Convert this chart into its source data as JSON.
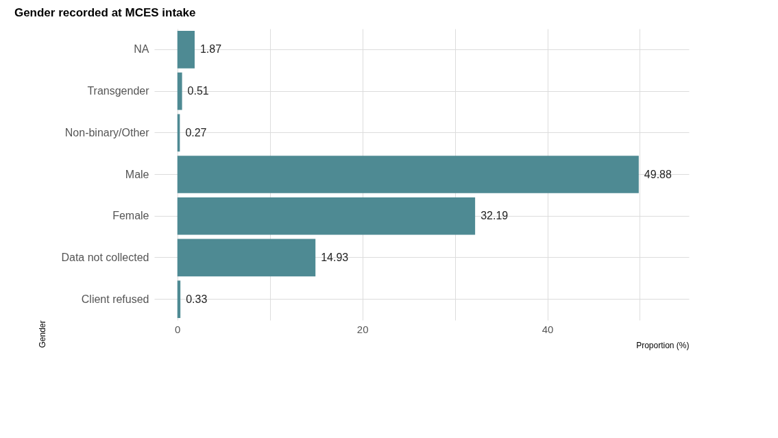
{
  "chart_data": {
    "type": "bar",
    "orientation": "horizontal",
    "title": "Gender recorded at MCES intake",
    "xlabel": "Proportion (%)",
    "ylabel": "Gender",
    "categories": [
      "NA",
      "Transgender",
      "Non-binary/Other",
      "Male",
      "Female",
      "Data not collected",
      "Client refused"
    ],
    "values": [
      1.87,
      0.51,
      0.27,
      49.88,
      32.19,
      14.93,
      0.33
    ],
    "color": "#4e8a93",
    "xlim": [
      -2.5,
      55.3
    ],
    "xticks": [
      0,
      {
        "value": 10,
        "label": null
      },
      20,
      {
        "value": 30,
        "label": null
      },
      40,
      {
        "value": 50,
        "label": null
      }
    ],
    "grid": true,
    "data_labels": true
  }
}
